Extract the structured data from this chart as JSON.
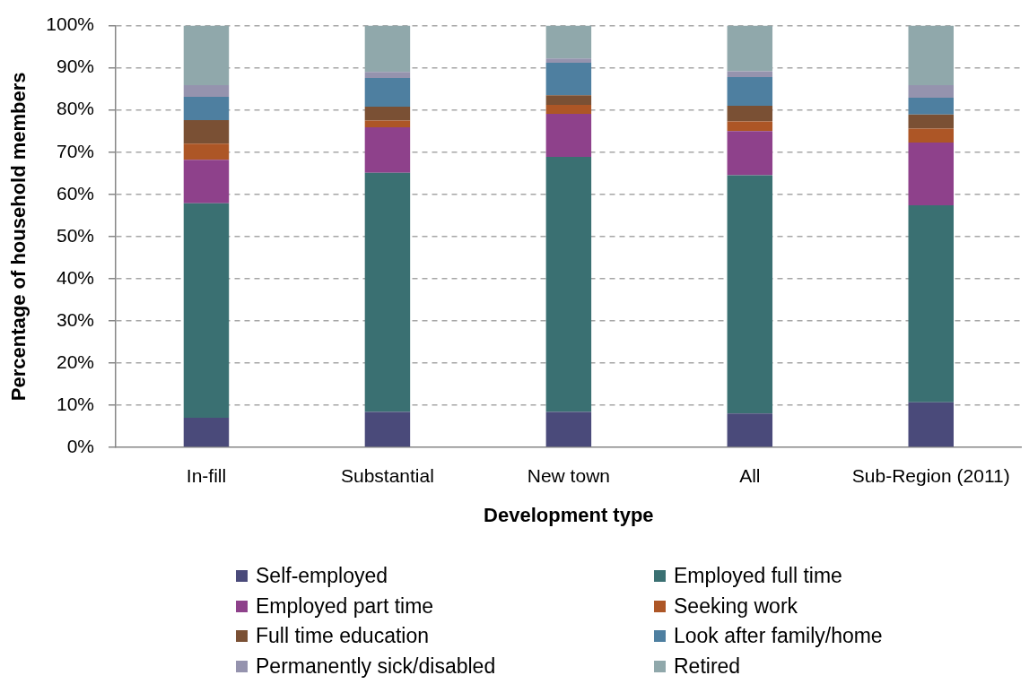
{
  "chart_data": {
    "type": "bar",
    "stacked": true,
    "categories": [
      "In-fill",
      "Substantial",
      "New town",
      "All",
      "Sub-Region (2011)"
    ],
    "series": [
      {
        "name": "Self-employed",
        "color": "#4a4a7a",
        "values": [
          7.0,
          8.4,
          8.4,
          8.0,
          10.7
        ]
      },
      {
        "name": "Employed full time",
        "color": "#3a7072",
        "values": [
          50.9,
          56.7,
          60.5,
          56.5,
          46.7
        ]
      },
      {
        "name": "Employed part time",
        "color": "#8e418b",
        "values": [
          10.3,
          10.8,
          10.2,
          10.5,
          14.9
        ]
      },
      {
        "name": "Seeking work",
        "color": "#ad5626",
        "values": [
          3.8,
          1.6,
          2.1,
          2.3,
          3.3
        ]
      },
      {
        "name": "Full time education",
        "color": "#7a5034",
        "values": [
          5.6,
          3.3,
          2.3,
          3.7,
          3.3
        ]
      },
      {
        "name": "Look after family/home",
        "color": "#4e7fa0",
        "values": [
          5.5,
          6.8,
          7.7,
          6.8,
          4.0
        ]
      },
      {
        "name": "Permanently sick/disabled",
        "color": "#9593ae",
        "values": [
          2.8,
          1.4,
          1.0,
          1.4,
          3.0
        ]
      },
      {
        "name": "Retired",
        "color": "#90a8ab",
        "values": [
          14.1,
          11.0,
          7.8,
          10.8,
          14.1
        ]
      }
    ],
    "xlabel": "Development type",
    "ylabel": "Percentage of household members",
    "ylim": [
      0,
      100
    ],
    "yticks": [
      {
        "value": 0,
        "label": "0%"
      },
      {
        "value": 10,
        "label": "10%"
      },
      {
        "value": 20,
        "label": "20%"
      },
      {
        "value": 30,
        "label": "30%"
      },
      {
        "value": 40,
        "label": "40%"
      },
      {
        "value": 50,
        "label": "50%"
      },
      {
        "value": 60,
        "label": "60%"
      },
      {
        "value": 70,
        "label": "70%"
      },
      {
        "value": 80,
        "label": "80%"
      },
      {
        "value": 90,
        "label": "90%"
      },
      {
        "value": 100,
        "label": "100%"
      }
    ],
    "grid": "y",
    "legend": "bottom"
  }
}
